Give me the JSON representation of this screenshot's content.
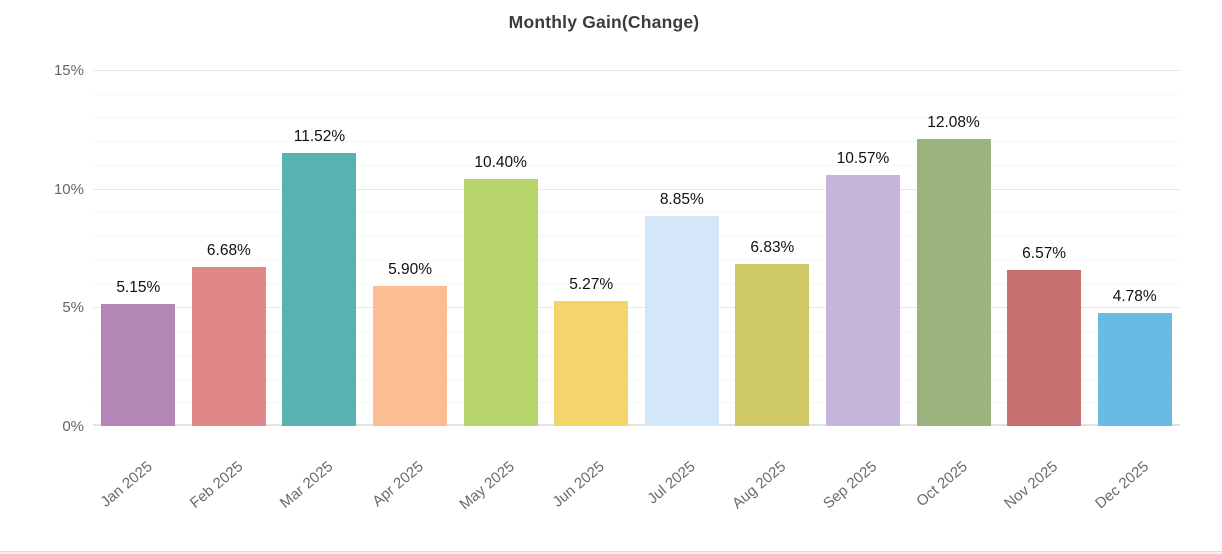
{
  "page": {
    "background": "#ffffff",
    "footer_strip_fill": "#f1f1f3",
    "footer_strip_border": "#dcdcdc"
  },
  "chart_data": {
    "type": "bar",
    "title": "Monthly Gain(Change)",
    "xlabel": "",
    "ylabel": "",
    "categories": [
      "Jan 2025",
      "Feb 2025",
      "Mar 2025",
      "Apr 2025",
      "May 2025",
      "Jun 2025",
      "Jul 2025",
      "Aug 2025",
      "Sep 2025",
      "Oct 2025",
      "Nov 2025",
      "Dec 2025"
    ],
    "values": [
      5.15,
      6.68,
      11.52,
      5.9,
      10.4,
      5.27,
      8.85,
      6.83,
      10.57,
      12.08,
      6.57,
      4.78
    ],
    "value_labels": [
      "5.15%",
      "6.68%",
      "11.52%",
      "5.90%",
      "10.40%",
      "5.27%",
      "8.85%",
      "6.83%",
      "10.57%",
      "12.08%",
      "6.57%",
      "4.78%"
    ],
    "bar_colors": [
      "#b286b5",
      "#e08787",
      "#57b2b0",
      "#fbbd92",
      "#b6d46b",
      "#f3d56c",
      "#d3e7f8",
      "#cdc967",
      "#c6b5da",
      "#9ab37f",
      "#c4716f",
      "#69bbe3"
    ],
    "ylim": [
      0,
      15
    ],
    "y_ticks": [
      {
        "value": 0,
        "label": "0%"
      },
      {
        "value": 5,
        "label": "5%"
      },
      {
        "value": 10,
        "label": "10%"
      },
      {
        "value": 15,
        "label": "15%"
      }
    ],
    "grid": {
      "orientation": "horizontal",
      "major_interval_pct": 5,
      "minor_interval_pct": 1,
      "visible": true
    },
    "legend": null,
    "colors": {
      "title": "#3c3c3c",
      "value_label": "#111111",
      "axis_tick_label": "#666666",
      "major_gridline": "#e9e9e9",
      "minor_gridline": "#f6f6f6",
      "baseline": "#e3e3e3"
    }
  }
}
